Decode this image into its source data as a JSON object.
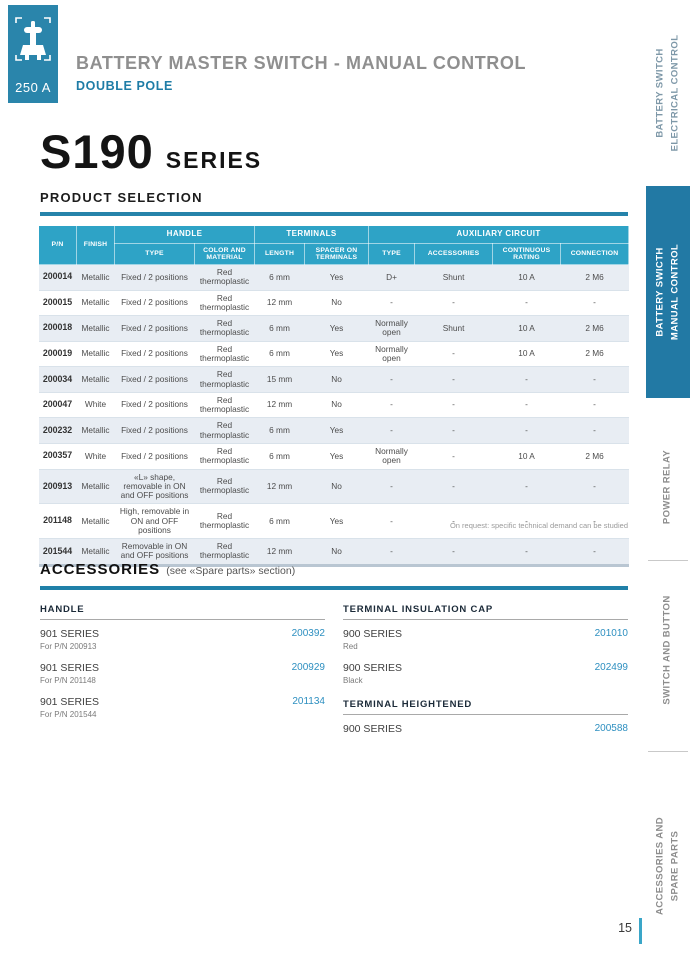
{
  "header": {
    "amperage": "250 A",
    "title": "BATTERY MASTER SWITCH - MANUAL CONTROL",
    "subtitle": "DOUBLE POLE"
  },
  "series": {
    "name": "S190",
    "suffix": "SERIES"
  },
  "product_selection": {
    "heading": "PRODUCT SELECTION",
    "note": "On request: specific technical demand can be studied",
    "columns": {
      "pn": "P/N",
      "finish": "FINISH",
      "handle_group": "HANDLE",
      "terminals_group": "TERMINALS",
      "aux_group": "AUXILIARY CIRCUIT",
      "handle_type": "TYPE",
      "handle_color": "COLOR AND MATERIAL",
      "length": "LENGTH",
      "spacer": "SPACER ON TERMINALS",
      "aux_type": "TYPE",
      "aux_accessories": "ACCESSORIES",
      "aux_rating": "CONTINUOUS RATING",
      "aux_connection": "CONNECTION"
    },
    "rows": [
      {
        "pn": "200014",
        "finish": "Metallic",
        "handle_type": "Fixed / 2  positions",
        "handle_color": "Red thermoplastic",
        "length": "6 mm",
        "spacer": "Yes",
        "aux_type": "D+",
        "aux_accessories": "Shunt",
        "aux_rating": "10 A",
        "aux_connection": "2 M6"
      },
      {
        "pn": "200015",
        "finish": "Metallic",
        "handle_type": "Fixed / 2 positions",
        "handle_color": "Red thermoplastic",
        "length": "12 mm",
        "spacer": "No",
        "aux_type": "-",
        "aux_accessories": "-",
        "aux_rating": "-",
        "aux_connection": "-"
      },
      {
        "pn": "200018",
        "finish": "Metallic",
        "handle_type": "Fixed / 2 positions",
        "handle_color": "Red thermoplastic",
        "length": "6 mm",
        "spacer": "Yes",
        "aux_type": "Normally open",
        "aux_accessories": "Shunt",
        "aux_rating": "10 A",
        "aux_connection": "2 M6"
      },
      {
        "pn": "200019",
        "finish": "Metallic",
        "handle_type": "Fixed / 2 positions",
        "handle_color": "Red thermoplastic",
        "length": "6 mm",
        "spacer": "Yes",
        "aux_type": "Normally open",
        "aux_accessories": "-",
        "aux_rating": "10 A",
        "aux_connection": "2 M6"
      },
      {
        "pn": "200034",
        "finish": "Metallic",
        "handle_type": "Fixed / 2 positions",
        "handle_color": "Red thermoplastic",
        "length": "15 mm",
        "spacer": "No",
        "aux_type": "-",
        "aux_accessories": "-",
        "aux_rating": "-",
        "aux_connection": "-"
      },
      {
        "pn": "200047",
        "finish": "White",
        "handle_type": "Fixed / 2 positions",
        "handle_color": "Red thermoplastic",
        "length": "12 mm",
        "spacer": "No",
        "aux_type": "-",
        "aux_accessories": "-",
        "aux_rating": "-",
        "aux_connection": "-"
      },
      {
        "pn": "200232",
        "finish": "Metallic",
        "handle_type": "Fixed / 2 positions",
        "handle_color": "Red thermoplastic",
        "length": "6 mm",
        "spacer": "Yes",
        "aux_type": "-",
        "aux_accessories": "-",
        "aux_rating": "-",
        "aux_connection": "-"
      },
      {
        "pn": "200357",
        "finish": "White",
        "handle_type": "Fixed / 2 positions",
        "handle_color": "Red thermoplastic",
        "length": "6 mm",
        "spacer": "Yes",
        "aux_type": "Normally open",
        "aux_accessories": "-",
        "aux_rating": "10 A",
        "aux_connection": "2 M6"
      },
      {
        "pn": "200913",
        "finish": "Metallic",
        "handle_type": "«L» shape, removable in ON and OFF positions",
        "handle_color": "Red thermoplastic",
        "length": "12 mm",
        "spacer": "No",
        "aux_type": "-",
        "aux_accessories": "-",
        "aux_rating": "-",
        "aux_connection": "-"
      },
      {
        "pn": "201148",
        "finish": "Metallic",
        "handle_type": "High, removable in ON and OFF positions",
        "handle_color": "Red thermoplastic",
        "length": "6 mm",
        "spacer": "Yes",
        "aux_type": "-",
        "aux_accessories": "-",
        "aux_rating": "-",
        "aux_connection": "-"
      },
      {
        "pn": "201544",
        "finish": "Metallic",
        "handle_type": "Removable in ON and OFF positions",
        "handle_color": "Red thermoplastic",
        "length": "12 mm",
        "spacer": "No",
        "aux_type": "-",
        "aux_accessories": "-",
        "aux_rating": "-",
        "aux_connection": "-"
      }
    ]
  },
  "accessories_section": {
    "heading": "ACCESSORIES",
    "heading_note": "(see «Spare parts» section)",
    "columns": [
      {
        "groups": [
          {
            "title": "HANDLE",
            "items": [
              {
                "name": "901 SERIES",
                "detail": "For P/N 200913",
                "pn": "200392"
              },
              {
                "name": "901 SERIES",
                "detail": "For P/N 201148",
                "pn": "200929"
              },
              {
                "name": "901 SERIES",
                "detail": "For P/N 201544",
                "pn": "201134"
              }
            ]
          }
        ]
      },
      {
        "groups": [
          {
            "title": "TERMINAL INSULATION CAP",
            "items": [
              {
                "name": "900 SERIES",
                "detail": "Red",
                "pn": "201010"
              },
              {
                "name": "900 SERIES",
                "detail": "Black",
                "pn": "202499"
              }
            ]
          },
          {
            "title": "TERMINAL HEIGHTENED",
            "items": [
              {
                "name": "900 SERIES",
                "detail": "",
                "pn": "200588"
              }
            ]
          }
        ]
      }
    ]
  },
  "sidebar": {
    "tabs": [
      {
        "lines": [
          "BATTERY SWITCH",
          "ELECTRICAL CONTROL"
        ],
        "style": "link"
      },
      {
        "lines": [
          "BATTERY SWICTH",
          "MANUAL CONTROL"
        ],
        "style": "active"
      },
      {
        "lines": [
          "POWER RELAY"
        ],
        "style": "plain"
      },
      {
        "lines": [
          "SWITCH AND BUTTON"
        ],
        "style": "plain"
      },
      {
        "lines": [
          "ACCESSORIES AND",
          "SPARE PARTS"
        ],
        "style": "plain"
      }
    ]
  },
  "footer": {
    "page_number": "15"
  },
  "colors": {
    "badge_blue": "#2a85ab",
    "table_header_blue": "#2ea3c6",
    "active_tab_blue": "#2279a4",
    "rule_blue": "#2583aa",
    "link_blue": "#2d8fc0",
    "row_shade": "#e8edf3"
  }
}
